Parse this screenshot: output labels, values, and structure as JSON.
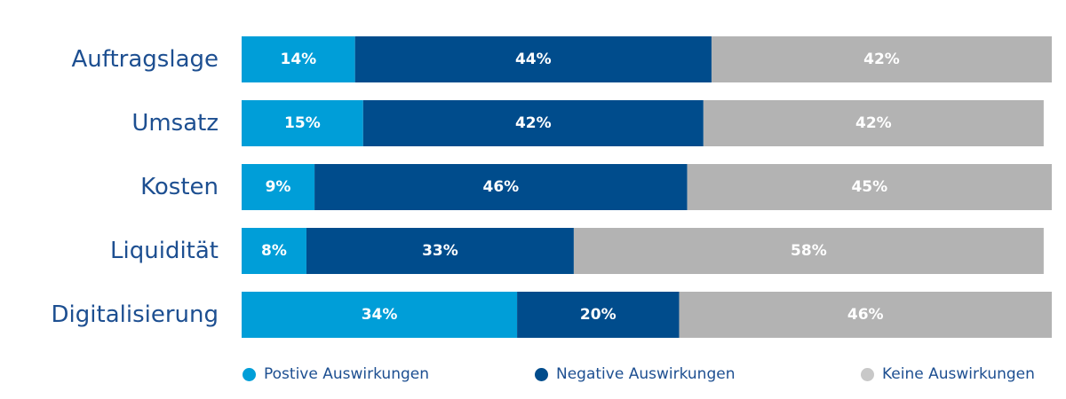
{
  "chart_data": {
    "type": "bar",
    "orientation": "horizontal",
    "stacked": true,
    "categories": [
      "Auftragslage",
      "Umsatz",
      "Kosten",
      "Liquidität",
      "Digitalisierung"
    ],
    "series": [
      {
        "name": "Postive Auswirkungen",
        "color": "#009ed8",
        "values": [
          14,
          15,
          9,
          8,
          34
        ]
      },
      {
        "name": "Negative Auswirkungen",
        "color": "#004c8c",
        "values": [
          44,
          42,
          46,
          33,
          20
        ]
      },
      {
        "name": "Keine Auswirkungen",
        "color": "#b3b3b3",
        "values": [
          42,
          42,
          45,
          58,
          46
        ]
      }
    ],
    "value_format": "{v}%",
    "xlim": [
      0,
      100
    ],
    "grid": false,
    "legend_position": "bottom"
  },
  "colors": {
    "label_text": "#1d4f91",
    "value_text": "#ffffff"
  }
}
